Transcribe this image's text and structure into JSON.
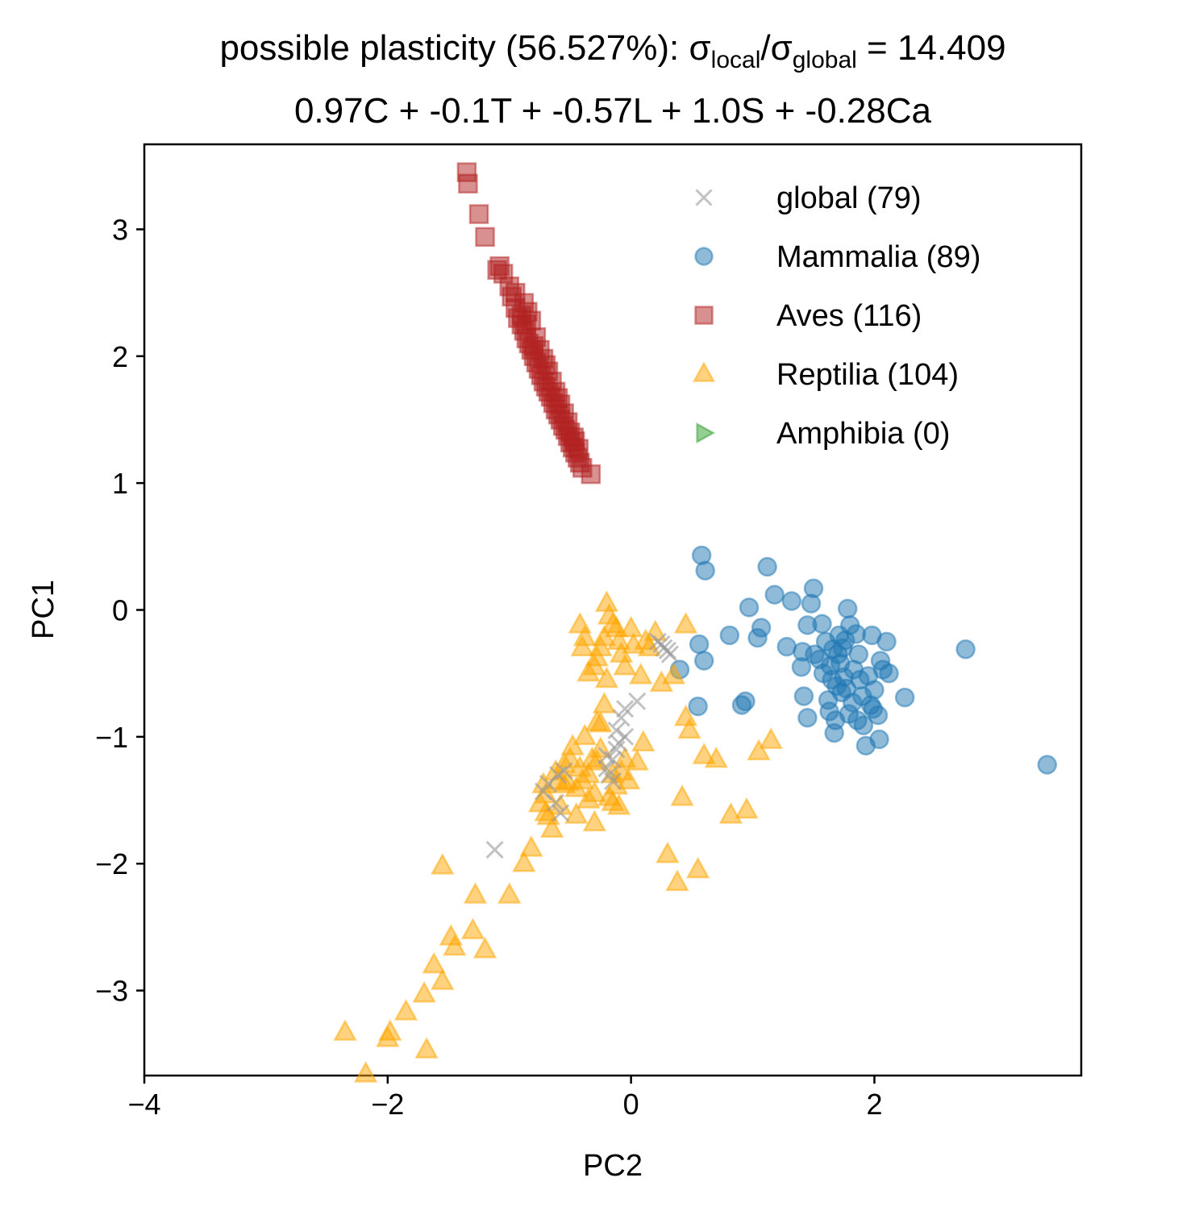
{
  "chart_data": {
    "type": "scatter",
    "title_line1_prefix": "possible plasticity (56.527%): σ",
    "title_sub_local": "local",
    "title_slash": "/σ",
    "title_sub_global": "global",
    "title_line1_suffix": " = 14.409",
    "title_line2": "0.97C + -0.1T + -0.57L + 1.0S + -0.28Ca",
    "xlabel": "PC2",
    "ylabel": "PC1",
    "xlim": [
      -4.0,
      3.7
    ],
    "ylim": [
      -3.67,
      3.67
    ],
    "x_ticks": [
      -4,
      -2,
      0,
      2
    ],
    "x_tick_labels": [
      "−4",
      "−2",
      "0",
      "2"
    ],
    "y_ticks": [
      -3,
      -2,
      -1,
      0,
      1,
      2,
      3
    ],
    "y_tick_labels": [
      "−3",
      "−2",
      "−1",
      "0",
      "1",
      "2",
      "3"
    ],
    "grid": false,
    "legend_position": "top-right",
    "series": [
      {
        "name": "global (79)",
        "marker": "x",
        "color": "#999999",
        "points": [
          [
            -1.12,
            -1.89
          ],
          [
            -0.72,
            -1.43
          ],
          [
            -0.68,
            -1.37
          ],
          [
            -0.6,
            -1.3
          ],
          [
            -0.58,
            -1.6
          ],
          [
            -0.62,
            -1.52
          ],
          [
            -0.55,
            -1.27
          ],
          [
            -0.2,
            -1.25
          ],
          [
            -0.18,
            -1.3
          ],
          [
            -0.15,
            -1.18
          ],
          [
            -0.12,
            -1.1
          ],
          [
            -0.1,
            -1.05
          ],
          [
            -0.12,
            -0.95
          ],
          [
            -0.08,
            -0.85
          ],
          [
            -0.05,
            -0.78
          ],
          [
            0.05,
            -0.72
          ],
          [
            -0.15,
            -1.35
          ],
          [
            -0.2,
            -1.15
          ],
          [
            0.25,
            -0.27
          ],
          [
            0.3,
            -0.32
          ],
          [
            0.27,
            -0.3
          ],
          [
            0.32,
            -0.35
          ],
          [
            0.22,
            -0.25
          ],
          [
            -0.05,
            -1.0
          ]
        ]
      },
      {
        "name": "Mammalia (89)",
        "marker": "o",
        "color": "#1f77b4",
        "points": [
          [
            0.58,
            0.43
          ],
          [
            0.61,
            0.31
          ],
          [
            1.12,
            0.34
          ],
          [
            1.18,
            0.12
          ],
          [
            0.97,
            0.02
          ],
          [
            0.81,
            -0.2
          ],
          [
            0.4,
            -0.47
          ],
          [
            0.56,
            -0.27
          ],
          [
            0.6,
            -0.4
          ],
          [
            0.55,
            -0.76
          ],
          [
            0.91,
            -0.75
          ],
          [
            0.94,
            -0.72
          ],
          [
            1.04,
            -0.22
          ],
          [
            1.07,
            -0.14
          ],
          [
            1.28,
            -0.29
          ],
          [
            1.32,
            0.07
          ],
          [
            1.41,
            -0.33
          ],
          [
            1.4,
            -0.45
          ],
          [
            1.42,
            -0.68
          ],
          [
            1.45,
            -0.12
          ],
          [
            1.5,
            0.17
          ],
          [
            1.48,
            0.05
          ],
          [
            1.55,
            -0.39
          ],
          [
            1.58,
            -0.5
          ],
          [
            1.6,
            -0.25
          ],
          [
            1.62,
            -0.71
          ],
          [
            1.63,
            -0.8
          ],
          [
            1.65,
            -0.55
          ],
          [
            1.66,
            -0.31
          ],
          [
            1.67,
            -0.97
          ],
          [
            1.68,
            -0.87
          ],
          [
            1.69,
            -0.6
          ],
          [
            1.7,
            -0.35
          ],
          [
            1.72,
            -0.42
          ],
          [
            1.73,
            -0.65
          ],
          [
            1.74,
            -0.3
          ],
          [
            1.75,
            -0.53
          ],
          [
            1.76,
            -0.24
          ],
          [
            1.77,
            -0.62
          ],
          [
            1.78,
            0.01
          ],
          [
            1.8,
            -0.12
          ],
          [
            1.82,
            -0.73
          ],
          [
            1.83,
            -0.47
          ],
          [
            1.85,
            -0.19
          ],
          [
            1.86,
            -0.87
          ],
          [
            1.88,
            -0.55
          ],
          [
            1.9,
            -0.68
          ],
          [
            1.91,
            -0.91
          ],
          [
            1.93,
            -1.07
          ],
          [
            1.95,
            -0.52
          ],
          [
            1.97,
            -0.75
          ],
          [
            1.98,
            -0.2
          ],
          [
            2.0,
            -0.63
          ],
          [
            2.03,
            -0.83
          ],
          [
            2.04,
            -1.02
          ],
          [
            2.05,
            -0.4
          ],
          [
            2.07,
            -0.47
          ],
          [
            2.1,
            -0.25
          ],
          [
            2.12,
            -0.5
          ],
          [
            2.25,
            -0.69
          ],
          [
            2.75,
            -0.31
          ],
          [
            3.42,
            -1.22
          ],
          [
            1.57,
            -0.11
          ],
          [
            1.51,
            -0.35
          ],
          [
            1.45,
            -0.85
          ],
          [
            1.64,
            -0.44
          ],
          [
            1.71,
            -0.2
          ],
          [
            1.79,
            -0.82
          ],
          [
            1.87,
            -0.35
          ],
          [
            1.99,
            -0.78
          ]
        ]
      },
      {
        "name": "Aves (116)",
        "marker": "s",
        "color": "#b22222",
        "points": [
          [
            -1.35,
            3.45
          ],
          [
            -1.34,
            3.36
          ],
          [
            -1.25,
            3.12
          ],
          [
            -1.2,
            2.94
          ],
          [
            -1.08,
            2.71
          ],
          [
            -1.05,
            2.65
          ],
          [
            -1.0,
            2.55
          ],
          [
            -0.98,
            2.47
          ],
          [
            -0.95,
            2.38
          ],
          [
            -0.93,
            2.3
          ],
          [
            -0.9,
            2.25
          ],
          [
            -0.88,
            2.2
          ],
          [
            -0.86,
            2.14
          ],
          [
            -0.84,
            2.1
          ],
          [
            -0.82,
            2.05
          ],
          [
            -0.8,
            2.0
          ],
          [
            -0.78,
            1.95
          ],
          [
            -0.76,
            1.9
          ],
          [
            -0.74,
            1.85
          ],
          [
            -0.72,
            1.8
          ],
          [
            -0.7,
            1.76
          ],
          [
            -0.68,
            1.72
          ],
          [
            -0.66,
            1.68
          ],
          [
            -0.64,
            1.63
          ],
          [
            -0.62,
            1.58
          ],
          [
            -0.6,
            1.54
          ],
          [
            -0.58,
            1.5
          ],
          [
            -0.56,
            1.45
          ],
          [
            -0.54,
            1.42
          ],
          [
            -0.52,
            1.37
          ],
          [
            -0.5,
            1.32
          ],
          [
            -0.48,
            1.28
          ],
          [
            -0.46,
            1.24
          ],
          [
            -0.44,
            1.2
          ],
          [
            -0.42,
            1.16
          ],
          [
            -0.4,
            1.12
          ],
          [
            -0.33,
            1.07
          ],
          [
            -0.88,
            2.42
          ],
          [
            -0.85,
            2.35
          ],
          [
            -0.82,
            2.28
          ],
          [
            -0.78,
            2.15
          ],
          [
            -0.75,
            2.05
          ],
          [
            -0.72,
            1.98
          ],
          [
            -0.68,
            1.88
          ],
          [
            -0.65,
            1.8
          ],
          [
            -0.62,
            1.72
          ],
          [
            -0.58,
            1.62
          ],
          [
            -0.55,
            1.55
          ],
          [
            -0.52,
            1.48
          ],
          [
            -0.5,
            1.4
          ],
          [
            -0.46,
            1.33
          ],
          [
            -0.43,
            1.27
          ],
          [
            -1.1,
            2.68
          ],
          [
            -0.95,
            2.5
          ],
          [
            -0.9,
            2.32
          ],
          [
            -0.86,
            2.25
          ],
          [
            -0.8,
            2.08
          ],
          [
            -0.7,
            1.93
          ],
          [
            -0.6,
            1.67
          ],
          [
            -0.47,
            1.36
          ]
        ]
      },
      {
        "name": "Reptilia (104)",
        "marker": "^",
        "color": "#ffa500",
        "points": [
          [
            -2.35,
            -3.33
          ],
          [
            -2.18,
            -3.66
          ],
          [
            -2.0,
            -3.38
          ],
          [
            -1.98,
            -3.33
          ],
          [
            -1.85,
            -3.17
          ],
          [
            -1.68,
            -3.47
          ],
          [
            -1.7,
            -3.03
          ],
          [
            -1.62,
            -2.8
          ],
          [
            -1.55,
            -2.93
          ],
          [
            -1.48,
            -2.58
          ],
          [
            -1.45,
            -2.66
          ],
          [
            -1.55,
            -2.02
          ],
          [
            -1.3,
            -2.53
          ],
          [
            -1.28,
            -2.25
          ],
          [
            -1.2,
            -2.68
          ],
          [
            -1.0,
            -2.25
          ],
          [
            -0.88,
            -2.0
          ],
          [
            -0.82,
            -1.88
          ],
          [
            -0.75,
            -1.53
          ],
          [
            -0.72,
            -1.38
          ],
          [
            -0.7,
            -1.46
          ],
          [
            -0.68,
            -1.63
          ],
          [
            -0.65,
            -1.73
          ],
          [
            -0.62,
            -1.28
          ],
          [
            -0.6,
            -1.35
          ],
          [
            -0.58,
            -1.55
          ],
          [
            -0.55,
            -1.22
          ],
          [
            -0.52,
            -1.36
          ],
          [
            -0.5,
            -1.18
          ],
          [
            -0.48,
            -1.08
          ],
          [
            -0.45,
            -1.41
          ],
          [
            -0.42,
            -1.25
          ],
          [
            -0.4,
            -1.35
          ],
          [
            -0.38,
            -1.0
          ],
          [
            -0.35,
            -1.3
          ],
          [
            -0.32,
            -1.18
          ],
          [
            -0.3,
            -1.45
          ],
          [
            -0.28,
            -0.89
          ],
          [
            -0.25,
            -1.1
          ],
          [
            -0.22,
            -0.75
          ],
          [
            -0.2,
            -0.55
          ],
          [
            -0.18,
            -1.48
          ],
          [
            -0.15,
            -1.3
          ],
          [
            -0.12,
            -1.39
          ],
          [
            -0.1,
            -1.55
          ],
          [
            -0.08,
            -1.28
          ],
          [
            -0.05,
            -1.18
          ],
          [
            -0.02,
            -1.35
          ],
          [
            -0.2,
            0.05
          ],
          [
            -0.18,
            -0.05
          ],
          [
            -0.15,
            -0.12
          ],
          [
            -0.22,
            -0.22
          ],
          [
            -0.25,
            -0.3
          ],
          [
            -0.28,
            -0.38
          ],
          [
            -0.3,
            -0.45
          ],
          [
            -0.35,
            -0.5
          ],
          [
            -0.38,
            -0.22
          ],
          [
            -0.4,
            -0.3
          ],
          [
            -0.42,
            -0.12
          ],
          [
            -0.12,
            -0.15
          ],
          [
            -0.1,
            -0.25
          ],
          [
            -0.08,
            -0.35
          ],
          [
            -0.05,
            -0.45
          ],
          [
            0.0,
            -0.15
          ],
          [
            0.02,
            -0.28
          ],
          [
            0.08,
            -0.52
          ],
          [
            0.12,
            -0.25
          ],
          [
            0.15,
            -0.3
          ],
          [
            0.2,
            -0.18
          ],
          [
            0.25,
            -0.58
          ],
          [
            0.35,
            -0.52
          ],
          [
            0.45,
            -0.12
          ],
          [
            0.45,
            -0.85
          ],
          [
            0.48,
            -0.95
          ],
          [
            0.6,
            -1.15
          ],
          [
            0.7,
            -1.18
          ],
          [
            0.42,
            -1.48
          ],
          [
            0.3,
            -1.93
          ],
          [
            0.38,
            -2.15
          ],
          [
            0.55,
            -2.05
          ],
          [
            0.82,
            -1.62
          ],
          [
            0.95,
            -1.58
          ],
          [
            1.05,
            -1.12
          ],
          [
            1.15,
            -1.03
          ],
          [
            -0.3,
            -1.68
          ],
          [
            -0.35,
            -1.5
          ],
          [
            -0.45,
            -1.62
          ],
          [
            -0.55,
            -1.38
          ],
          [
            -0.28,
            -1.2
          ],
          [
            -0.15,
            -1.52
          ],
          [
            0.1,
            -1.05
          ],
          [
            0.05,
            -1.2
          ],
          [
            -0.25,
            -0.9
          ],
          [
            -0.7,
            -1.6
          ]
        ]
      },
      {
        "name": "Amphibia (0)",
        "marker": ">",
        "color": "#2ca02c",
        "points": []
      }
    ]
  }
}
